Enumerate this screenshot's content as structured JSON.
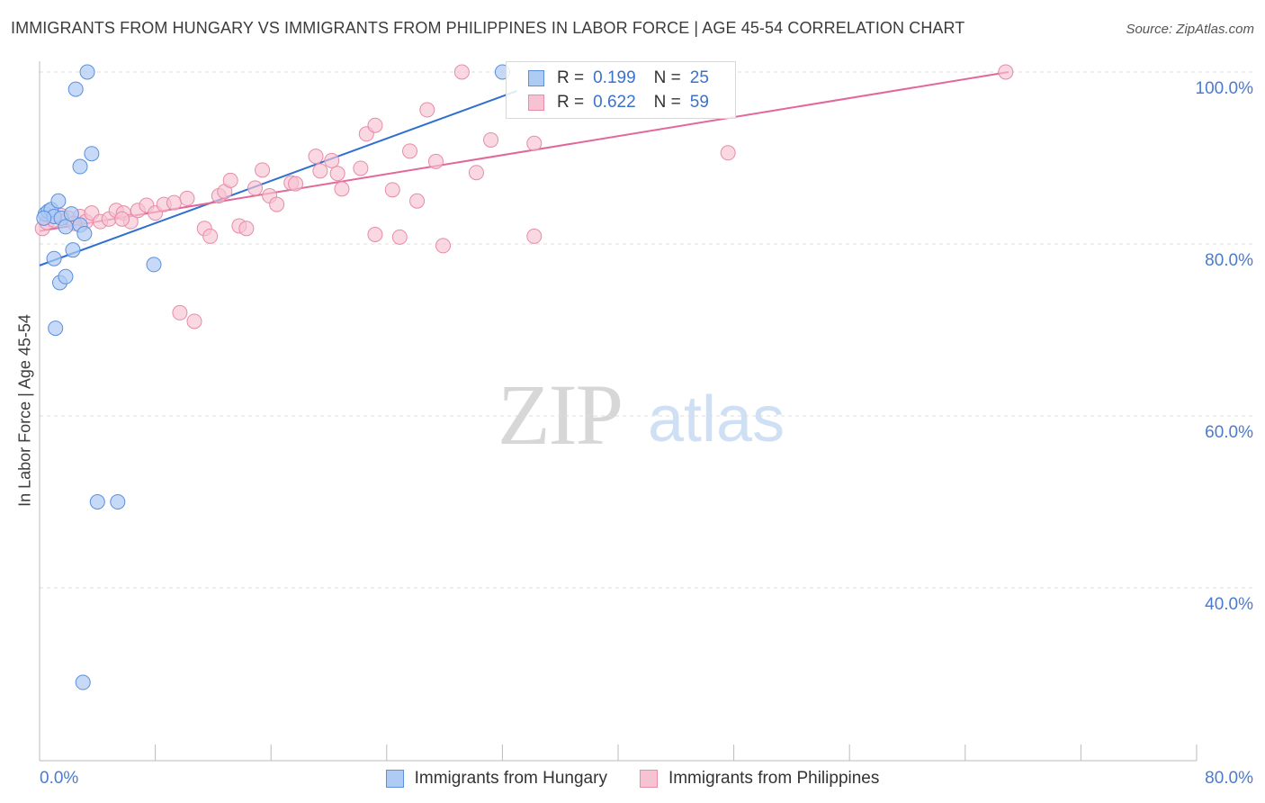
{
  "title": "IMMIGRANTS FROM HUNGARY VS IMMIGRANTS FROM PHILIPPINES IN LABOR FORCE | AGE 45-54 CORRELATION CHART",
  "source": "Source: ZipAtlas.com",
  "watermark": {
    "zip": "ZIP",
    "atlas": "atlas"
  },
  "legend": {
    "rows": [
      {
        "r_label": "R =",
        "r_value": "0.199",
        "n_label": "N =",
        "n_value": "25"
      },
      {
        "r_label": "R =",
        "r_value": "0.622",
        "n_label": "N =",
        "n_value": "59"
      }
    ]
  },
  "colors": {
    "hungary_fill": "#aecbf3",
    "hungary_stroke": "#5b8fdc",
    "hungary_line": "#2f6fd0",
    "philippines_fill": "#f7c3d3",
    "philippines_stroke": "#e88aa8",
    "philippines_line": "#e2689a",
    "tick_text": "#4a7bd0",
    "grid": "#dddddd"
  },
  "chart_data": {
    "type": "scatter",
    "title": "IMMIGRANTS FROM HUNGARY VS IMMIGRANTS FROM PHILIPPINES IN LABOR FORCE | AGE 45-54 CORRELATION CHART",
    "xlabel": "",
    "ylabel": "In Labor Force | Age 45-54",
    "xlim": [
      0,
      80
    ],
    "ylim": [
      20,
      102
    ],
    "x_tick_labels": [
      "0.0%",
      "80.0%"
    ],
    "y_ticks": [
      40,
      60,
      80,
      100
    ],
    "y_tick_labels": [
      "40.0%",
      "60.0%",
      "80.0%",
      "100.0%"
    ],
    "grid": true,
    "legend_position": "top-center",
    "series": [
      {
        "name": "Immigrants from Hungary",
        "r": 0.199,
        "n": 25,
        "trend": {
          "x": [
            0,
            33
          ],
          "y": [
            77.5,
            97.8
          ]
        },
        "points": [
          [
            0.4,
            83.5
          ],
          [
            0.6,
            83.8
          ],
          [
            0.8,
            84.0
          ],
          [
            1.0,
            83.2
          ],
          [
            1.3,
            85.0
          ],
          [
            1.5,
            83.0
          ],
          [
            1.8,
            82.0
          ],
          [
            2.2,
            83.5
          ],
          [
            2.8,
            82.2
          ],
          [
            3.1,
            81.2
          ],
          [
            1.0,
            78.3
          ],
          [
            1.4,
            75.5
          ],
          [
            1.8,
            76.2
          ],
          [
            2.3,
            79.3
          ],
          [
            7.9,
            77.6
          ],
          [
            1.1,
            70.2
          ],
          [
            2.5,
            98.0
          ],
          [
            3.3,
            100.0
          ],
          [
            2.8,
            89.0
          ],
          [
            3.6,
            90.5
          ],
          [
            4.0,
            50.0
          ],
          [
            5.4,
            50.0
          ],
          [
            3.0,
            29.0
          ],
          [
            32.0,
            100.0
          ],
          [
            0.3,
            83.0
          ]
        ]
      },
      {
        "name": "Immigrants from Philippines",
        "r": 0.622,
        "n": 59,
        "trend": {
          "x": [
            0,
            67
          ],
          "y": [
            81.5,
            100.0
          ]
        },
        "points": [
          [
            0.2,
            81.8
          ],
          [
            0.5,
            82.5
          ],
          [
            1.0,
            82.8
          ],
          [
            1.5,
            83.3
          ],
          [
            2.0,
            83.0
          ],
          [
            2.8,
            83.2
          ],
          [
            3.2,
            82.6
          ],
          [
            3.6,
            83.6
          ],
          [
            4.2,
            82.6
          ],
          [
            4.8,
            82.9
          ],
          [
            5.3,
            83.9
          ],
          [
            5.8,
            83.6
          ],
          [
            6.3,
            82.6
          ],
          [
            6.8,
            83.9
          ],
          [
            7.4,
            84.5
          ],
          [
            8.0,
            83.6
          ],
          [
            8.6,
            84.6
          ],
          [
            9.3,
            84.8
          ],
          [
            10.2,
            85.3
          ],
          [
            11.4,
            81.8
          ],
          [
            11.8,
            80.9
          ],
          [
            12.4,
            85.6
          ],
          [
            12.8,
            86.1
          ],
          [
            13.2,
            87.4
          ],
          [
            13.8,
            82.1
          ],
          [
            14.3,
            81.8
          ],
          [
            14.9,
            86.5
          ],
          [
            15.4,
            88.6
          ],
          [
            15.9,
            85.6
          ],
          [
            16.4,
            84.6
          ],
          [
            17.4,
            87.1
          ],
          [
            17.7,
            87.0
          ],
          [
            19.1,
            90.2
          ],
          [
            19.4,
            88.5
          ],
          [
            20.2,
            89.7
          ],
          [
            20.6,
            88.2
          ],
          [
            20.9,
            86.4
          ],
          [
            22.2,
            88.8
          ],
          [
            22.6,
            92.8
          ],
          [
            23.2,
            93.8
          ],
          [
            23.2,
            81.1
          ],
          [
            24.4,
            86.3
          ],
          [
            24.9,
            80.8
          ],
          [
            25.6,
            90.8
          ],
          [
            26.1,
            85.0
          ],
          [
            26.8,
            95.6
          ],
          [
            27.4,
            89.6
          ],
          [
            27.9,
            79.8
          ],
          [
            29.2,
            100.0
          ],
          [
            30.2,
            88.3
          ],
          [
            31.2,
            92.1
          ],
          [
            34.2,
            91.7
          ],
          [
            34.2,
            80.9
          ],
          [
            47.6,
            90.6
          ],
          [
            66.8,
            100.0
          ],
          [
            9.7,
            72.0
          ],
          [
            10.7,
            71.0
          ],
          [
            2.4,
            82.4
          ],
          [
            5.7,
            82.9
          ]
        ]
      }
    ]
  },
  "bottom_legend": [
    {
      "label": "Immigrants from Hungary"
    },
    {
      "label": "Immigrants from Philippines"
    }
  ]
}
